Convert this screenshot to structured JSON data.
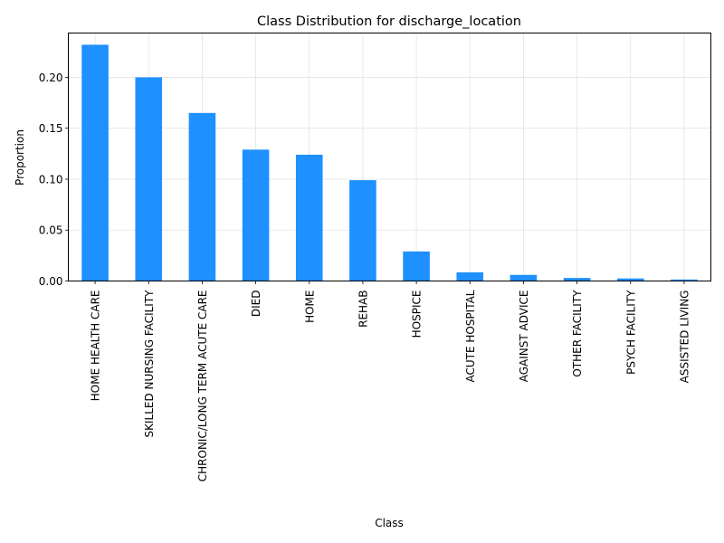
{
  "chart_data": {
    "type": "bar",
    "title": "Class Distribution for discharge_location",
    "xlabel": "Class",
    "ylabel": "Proportion",
    "ylim": [
      0,
      0.2435
    ],
    "yticks": [
      0.0,
      0.05,
      0.1,
      0.15,
      0.2
    ],
    "ytick_labels": [
      "0.00",
      "0.05",
      "0.10",
      "0.15",
      "0.20"
    ],
    "grid": true,
    "bar_color": "#1e90ff",
    "categories": [
      "HOME HEALTH CARE",
      "SKILLED NURSING FACILITY",
      "CHRONIC/LONG TERM ACUTE CARE",
      "DIED",
      "HOME",
      "REHAB",
      "HOSPICE",
      "ACUTE HOSPITAL",
      "AGAINST ADVICE",
      "OTHER FACILITY",
      "PSYCH FACILITY",
      "ASSISTED LIVING"
    ],
    "values": [
      0.232,
      0.2,
      0.165,
      0.129,
      0.124,
      0.099,
      0.029,
      0.0085,
      0.006,
      0.003,
      0.0025,
      0.0015
    ]
  }
}
